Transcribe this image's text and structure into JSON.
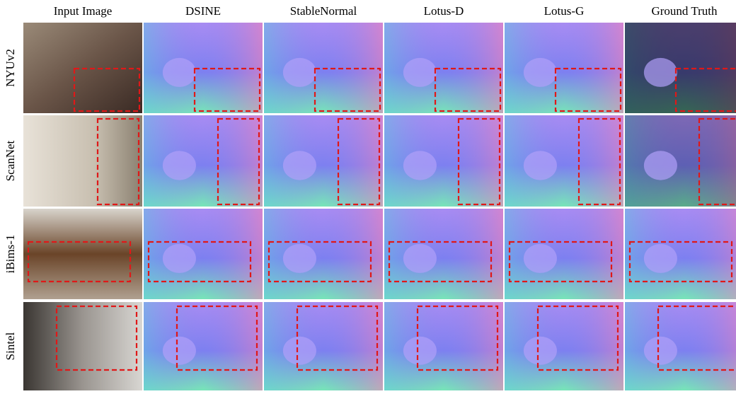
{
  "figure": {
    "columns": [
      "Input Image",
      "DSINE",
      "StableNormal",
      "Lotus-D",
      "Lotus-G",
      "Ground Truth"
    ],
    "rows": [
      "NYUv2",
      "ScanNet",
      "iBims-1",
      "Sintel"
    ]
  }
}
